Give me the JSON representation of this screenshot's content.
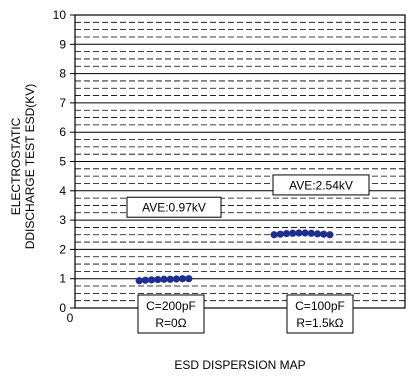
{
  "chart_data": {
    "type": "scatter",
    "title": "ESD DISPERSION MAP",
    "ylabel_lines": [
      "ELECTROSTATIC",
      "DDISCHARGE TEST ESD(KV)"
    ],
    "ylim": [
      0,
      10
    ],
    "yticks": [
      "0",
      "1",
      "2",
      "3",
      "4",
      "5",
      "6",
      "7",
      "8",
      "9",
      "10"
    ],
    "minor_grid_step": 0.25,
    "marker_color": "#1f2d8f",
    "categories": [
      {
        "label_lines": [
          "C=200pF",
          "R=0Ω"
        ],
        "values": [
          0.93,
          0.95,
          0.96,
          0.97,
          0.98,
          0.98,
          0.99,
          1.0,
          1.0
        ],
        "average_label": "AVE:0.97kV"
      },
      {
        "label_lines": [
          "C=100pF",
          "R=1.5kΩ"
        ],
        "values": [
          2.5,
          2.52,
          2.54,
          2.55,
          2.56,
          2.56,
          2.55,
          2.53,
          2.52,
          2.5
        ],
        "average_label": "AVE:2.54kV"
      }
    ],
    "stray_tick_label": "0"
  }
}
